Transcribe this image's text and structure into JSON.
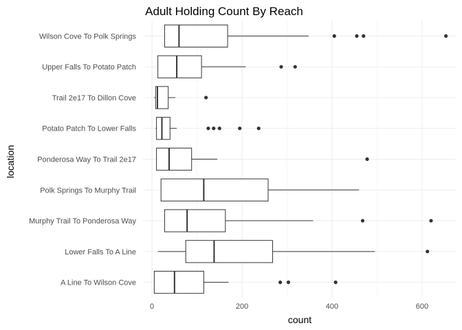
{
  "chart_data": {
    "type": "boxplot",
    "orientation": "horizontal",
    "title": "Adult Holding Count By Reach",
    "xlabel": "count",
    "ylabel": "location",
    "xlim": [
      -20,
      675
    ],
    "xticks": [
      0,
      200,
      400,
      600
    ],
    "grid": true,
    "categories": [
      "A Line To Wilson Cove",
      "Lower Falls To A Line",
      "Murphy Trail To Ponderosa Way",
      "Polk Springs To Murphy Trail",
      "Ponderosa Way To Trail 2e17",
      "Potato Patch To Lower Falls",
      "Trail 2e17 To Dillon Cove",
      "Upper Falls To Potato Patch",
      "Wilson Cove To Polk Springs"
    ],
    "boxes": [
      {
        "label": "A Line To Wilson Cove",
        "min": 5,
        "q1": 5,
        "median": 50,
        "q3": 115,
        "max": 170,
        "outliers": [
          285,
          303,
          408
        ]
      },
      {
        "label": "Lower Falls To A Line",
        "min": 13,
        "q1": 75,
        "median": 138,
        "q3": 268,
        "max": 495,
        "outliers": [
          612
        ]
      },
      {
        "label": "Murphy Trail To Ponderosa Way",
        "min": 28,
        "q1": 28,
        "median": 78,
        "q3": 163,
        "max": 358,
        "outliers": [
          468,
          620
        ]
      },
      {
        "label": "Polk Springs To Murphy Trail",
        "min": 20,
        "q1": 20,
        "median": 115,
        "q3": 258,
        "max": 460,
        "outliers": []
      },
      {
        "label": "Ponderosa Way To Trail 2e17",
        "min": 10,
        "q1": 10,
        "median": 38,
        "q3": 88,
        "max": 145,
        "outliers": [
          478
        ]
      },
      {
        "label": "Potato Patch To Lower Falls",
        "min": 8,
        "q1": 10,
        "median": 22,
        "q3": 40,
        "max": 55,
        "outliers": [
          125,
          137,
          150,
          195,
          237
        ]
      },
      {
        "label": "Trail 2e17 To Dillon Cove",
        "min": 5,
        "q1": 8,
        "median": 12,
        "q3": 36,
        "max": 52,
        "outliers": [
          120
        ]
      },
      {
        "label": "Upper Falls To Potato Patch",
        "min": 13,
        "q1": 13,
        "median": 55,
        "q3": 110,
        "max": 208,
        "outliers": [
          287,
          318
        ]
      },
      {
        "label": "Wilson Cove To Polk Springs",
        "min": 28,
        "q1": 28,
        "median": 60,
        "q3": 168,
        "max": 348,
        "outliers": [
          405,
          455,
          470,
          653
        ]
      }
    ]
  }
}
